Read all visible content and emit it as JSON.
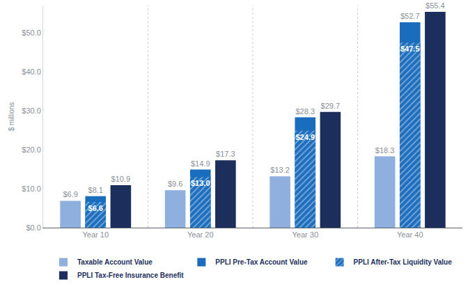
{
  "chart_data": {
    "type": "bar",
    "y_label": "$ millions",
    "categories": [
      "Year 10",
      "Year 20",
      "Year 30",
      "Year 40"
    ],
    "series": [
      {
        "name": "Taxable Account Value",
        "color": "#8fb0de",
        "values": [
          6.9,
          9.6,
          13.2,
          18.3
        ],
        "value_labels": [
          "$6.9",
          "$9.6",
          "$13.2",
          "$18.3"
        ]
      },
      {
        "name": "PPLI Pre-Tax Account Value",
        "color": "#1a6cbd",
        "values": [
          8.1,
          14.9,
          28.3,
          52.7
        ],
        "value_labels": [
          "$8.1",
          "$14.9",
          "$28.3",
          "$52.7"
        ]
      },
      {
        "name": "PPLI After-Tax Liquidity Value",
        "color": "#1f6fbf",
        "marker": "hatch",
        "values": [
          6.6,
          13.0,
          24.9,
          47.5
        ],
        "value_labels": [
          "$6.6",
          "$13.0",
          "$24.9",
          "$47.5"
        ]
      },
      {
        "name": "PPLI Tax-Free Insurance Benefit",
        "color": "#1c2f5c",
        "values": [
          10.9,
          17.3,
          29.7,
          55.4
        ],
        "value_labels": [
          "$10.9",
          "$17.3",
          "$29.7",
          "$55.4"
        ]
      }
    ],
    "ylim": [
      0,
      57
    ],
    "yticks": [
      {
        "value": 0,
        "label": "$0.0"
      },
      {
        "value": 10,
        "label": "$10.0"
      },
      {
        "value": 20,
        "label": "$20.0"
      },
      {
        "value": 30,
        "label": "$30.0"
      },
      {
        "value": 40,
        "label": "$40.0"
      },
      {
        "value": 50,
        "label": "$50.0"
      }
    ],
    "grid": false,
    "legend": "bottom",
    "data_labels": true
  }
}
